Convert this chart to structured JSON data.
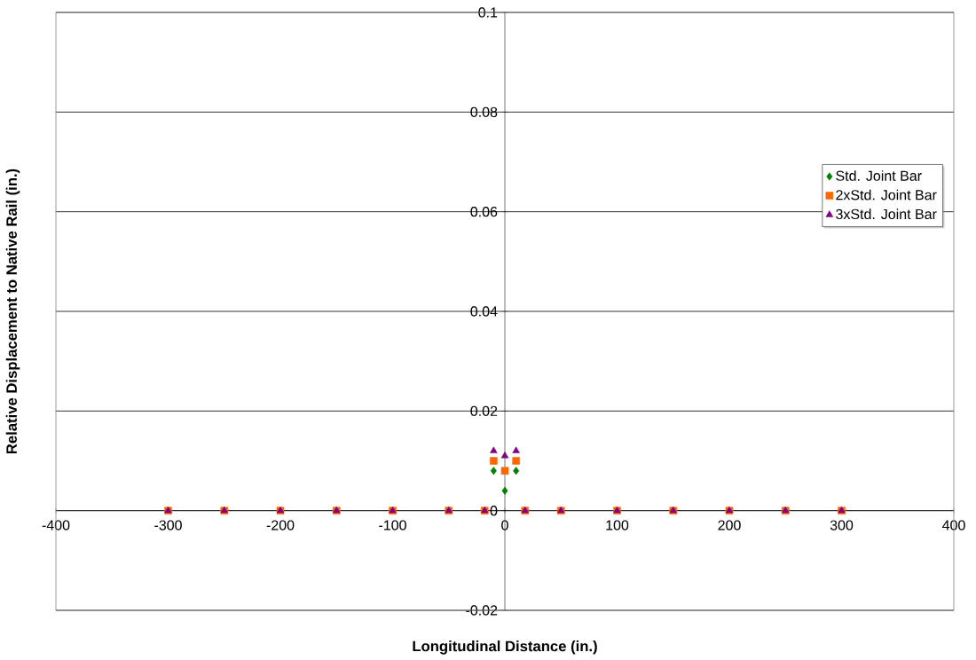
{
  "chart_data": {
    "type": "scatter",
    "xlabel": "Longitudinal Distance (in.)",
    "ylabel": "Relative Displacement to Native Rail (in.)",
    "x": [
      -300,
      -250,
      -200,
      -150,
      -100,
      -50,
      -18,
      -10,
      0,
      10,
      18,
      50,
      100,
      150,
      200,
      250,
      300
    ],
    "series": [
      {
        "name": "Std. Joint Bar",
        "color": "#008000",
        "marker": "diamond",
        "values": [
          null,
          null,
          null,
          null,
          null,
          null,
          null,
          0.008,
          0.004,
          0.008,
          null,
          null,
          null,
          null,
          null,
          null,
          null
        ]
      },
      {
        "name": "2xStd. Joint Bar",
        "color": "#ff6600",
        "marker": "square",
        "values": [
          0,
          0,
          0,
          0,
          0,
          0,
          0,
          0.01,
          0.008,
          0.01,
          0,
          0,
          0,
          0,
          0,
          0,
          0
        ]
      },
      {
        "name": "3xStd. Joint Bar",
        "color": "#800080",
        "marker": "triangle",
        "values": [
          0,
          0,
          0,
          0,
          0,
          0,
          0,
          0.012,
          0.011,
          0.012,
          0,
          0,
          0,
          0,
          0,
          0,
          0
        ]
      }
    ],
    "xlim": [
      -400,
      400
    ],
    "xticks": [
      -400,
      -300,
      -200,
      -100,
      0,
      100,
      200,
      300,
      400
    ],
    "ylim": [
      -0.02,
      0.1
    ],
    "yticks": [
      -0.02,
      0,
      0.02,
      0.04,
      0.06,
      0.08,
      0.1
    ],
    "grid": "y",
    "legend": "right"
  }
}
